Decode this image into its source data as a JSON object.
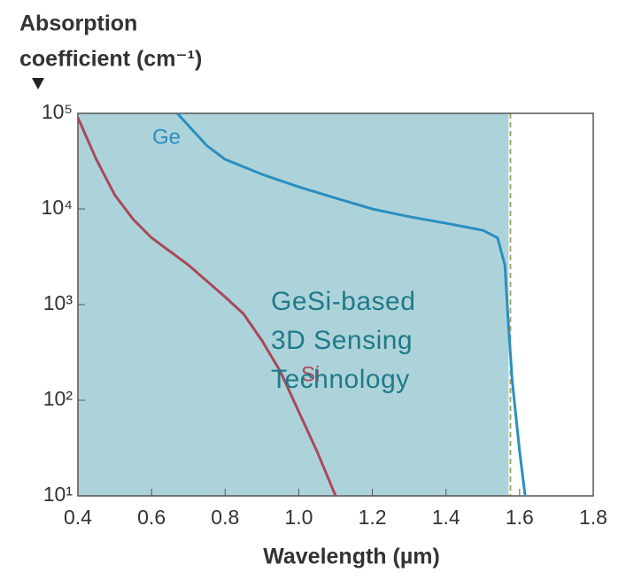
{
  "chart_data": {
    "type": "line",
    "y_label": [
      "Absorption",
      "coefficient (cm⁻¹)"
    ],
    "x_label": "Wavelength (µm)",
    "y_log": true,
    "xlim": [
      0.4,
      1.8
    ],
    "xticks": [
      0.4,
      0.6,
      0.8,
      {
        "value": 1.0,
        "label": "1.0"
      },
      1.2,
      1.4,
      1.6,
      1.8
    ],
    "ylim": [
      10,
      100000
    ],
    "yticks": [
      {
        "value": 10,
        "label": "10¹"
      },
      {
        "value": 100,
        "label": "10²"
      },
      {
        "value": 1000,
        "label": "10³"
      },
      {
        "value": 10000,
        "label": "10⁴"
      },
      {
        "value": 100000,
        "label": "10⁵"
      }
    ],
    "shaded_region": {
      "xmin": 0.4,
      "xmax": 1.57,
      "color": "#add3da"
    },
    "reference_line_x": 1.575,
    "annotation": [
      "GeSi-based",
      "3D Sensing",
      "Technology"
    ],
    "series": [
      {
        "name": "Ge",
        "color": "#2a8fc0",
        "x": [
          0.67,
          0.75,
          0.8,
          0.9,
          1.0,
          1.1,
          1.2,
          1.3,
          1.4,
          1.5,
          1.54,
          1.56,
          1.57,
          1.58,
          1.6,
          1.615
        ],
        "values": [
          100000,
          46000,
          33000,
          23000,
          17000,
          13000,
          10000,
          8300,
          7100,
          6000,
          5000,
          2600,
          580,
          160,
          29,
          10
        ]
      },
      {
        "name": "Si",
        "color": "#a84a5a",
        "x": [
          0.4,
          0.45,
          0.5,
          0.55,
          0.6,
          0.7,
          0.8,
          0.85,
          0.9,
          0.95,
          1.0,
          1.05,
          1.1
        ],
        "values": [
          90000,
          33000,
          14000,
          7800,
          5000,
          2600,
          1200,
          800,
          420,
          200,
          76,
          29,
          10
        ]
      }
    ]
  }
}
